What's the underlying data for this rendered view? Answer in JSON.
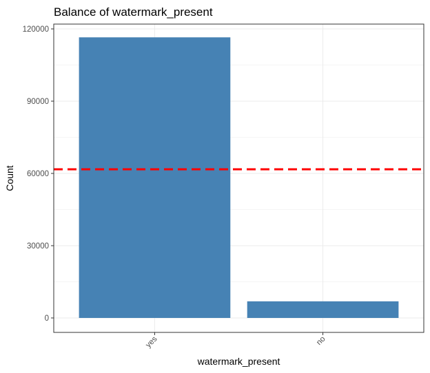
{
  "chart_data": {
    "type": "bar",
    "title": "Balance of watermark_present",
    "xlabel": "watermark_present",
    "ylabel": "Count",
    "categories": [
      "yes",
      "no"
    ],
    "values": [
      116500,
      6900
    ],
    "ylim": [
      -6000,
      122000
    ],
    "yticks": [
      0,
      30000,
      60000,
      90000,
      120000
    ],
    "ytick_labels": [
      "0",
      "30000",
      "60000",
      "90000",
      "120000"
    ],
    "reference_line": {
      "value": 61700,
      "style": "dashed"
    },
    "bar_color": "#4682B4",
    "reference_line_color": "#FF0000",
    "grid": true,
    "legend": "none"
  }
}
